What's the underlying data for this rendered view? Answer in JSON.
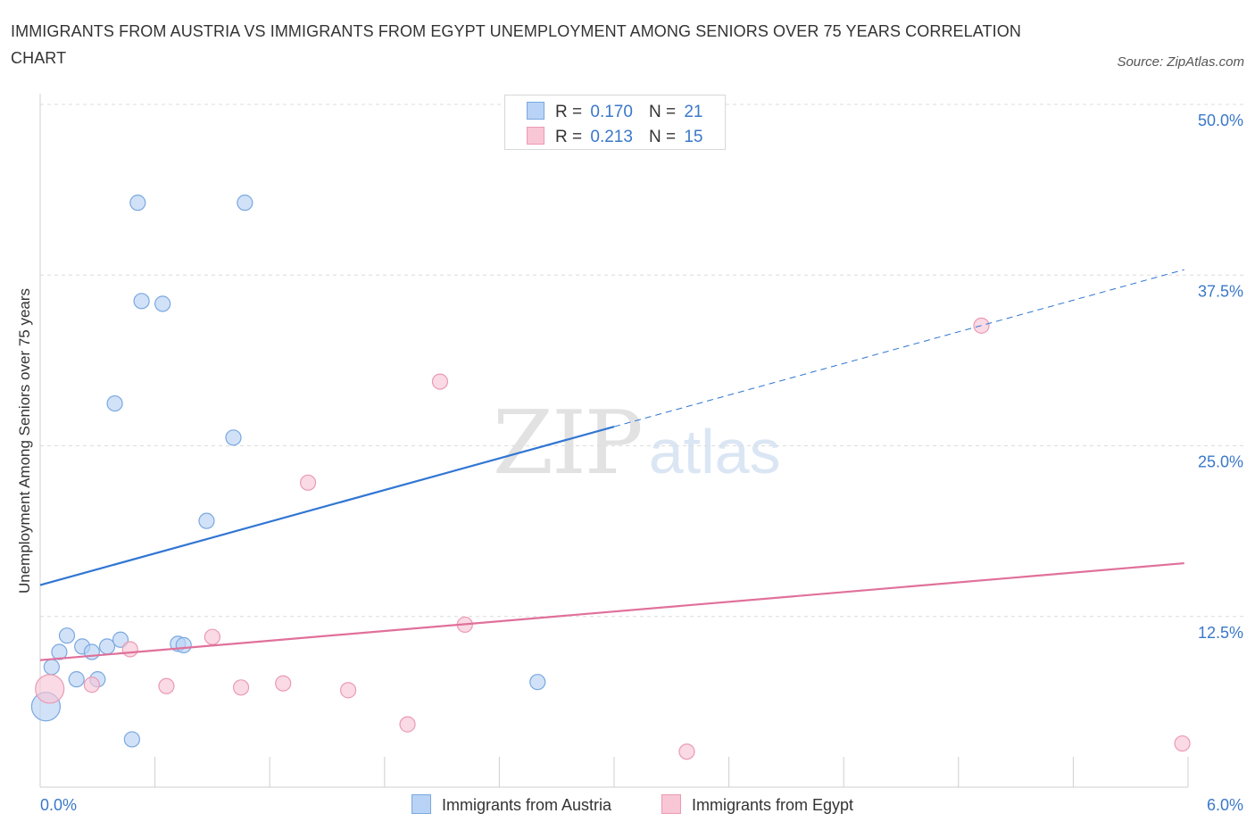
{
  "header": {
    "title": "IMMIGRANTS FROM AUSTRIA VS IMMIGRANTS FROM EGYPT UNEMPLOYMENT AMONG SENIORS OVER 75 YEARS CORRELATION CHART",
    "source": "Source: ZipAtlas.com"
  },
  "watermark": {
    "zip": "ZIP",
    "atlas": "atlas"
  },
  "legend": {
    "austria": {
      "r_label": "R =",
      "r_value": "0.170",
      "n_label": "N =",
      "n_value": "21"
    },
    "egypt": {
      "r_label": "R =",
      "r_value": "0.213",
      "n_label": "N =",
      "n_value": "15"
    }
  },
  "colors": {
    "austria_fill": "#b8d3f5",
    "austria_stroke": "#7aa8e0",
    "austria_line": "#3176d3",
    "egypt_fill": "#f8c6d5",
    "egypt_stroke": "#eb9ab4",
    "egypt_line": "#e0709a",
    "grid": "#dcdcdc",
    "axis_text": "#3a78c9"
  },
  "chart_data": {
    "type": "scatter",
    "title": "IMMIGRANTS FROM AUSTRIA VS IMMIGRANTS FROM EGYPT UNEMPLOYMENT AMONG SENIORS OVER 75 YEARS CORRELATION CHART",
    "xlabel": "",
    "ylabel": "Unemployment Among Seniors over 75 years",
    "xlim": [
      0,
      6
    ],
    "ylim": [
      0,
      50
    ],
    "x_tick_labels": [
      "0.0%",
      "6.0%"
    ],
    "y_ticks": [
      12.5,
      25.0,
      37.5,
      50.0
    ],
    "y_tick_labels": [
      "12.5%",
      "25.0%",
      "37.5%",
      "50.0%"
    ],
    "grid": true,
    "legend_position": "top-center",
    "series": [
      {
        "name": "Immigrants from Austria",
        "r": 0.17,
        "n": 21,
        "points": [
          {
            "x": 0.03,
            "y": 5.9,
            "size": "large"
          },
          {
            "x": 0.06,
            "y": 8.8,
            "size": "normal"
          },
          {
            "x": 0.1,
            "y": 9.9,
            "size": "normal"
          },
          {
            "x": 0.14,
            "y": 11.1,
            "size": "normal"
          },
          {
            "x": 0.19,
            "y": 7.9,
            "size": "normal"
          },
          {
            "x": 0.22,
            "y": 10.3,
            "size": "normal"
          },
          {
            "x": 0.27,
            "y": 9.9,
            "size": "normal"
          },
          {
            "x": 0.3,
            "y": 7.9,
            "size": "normal"
          },
          {
            "x": 0.35,
            "y": 10.3,
            "size": "normal"
          },
          {
            "x": 0.42,
            "y": 10.8,
            "size": "normal"
          },
          {
            "x": 0.39,
            "y": 28.1,
            "size": "normal"
          },
          {
            "x": 0.48,
            "y": 3.5,
            "size": "normal"
          },
          {
            "x": 0.51,
            "y": 42.8,
            "size": "normal"
          },
          {
            "x": 0.53,
            "y": 35.6,
            "size": "normal"
          },
          {
            "x": 0.64,
            "y": 35.4,
            "size": "normal"
          },
          {
            "x": 0.72,
            "y": 10.5,
            "size": "normal"
          },
          {
            "x": 0.75,
            "y": 10.4,
            "size": "normal"
          },
          {
            "x": 0.87,
            "y": 19.5,
            "size": "normal"
          },
          {
            "x": 1.01,
            "y": 25.6,
            "size": "normal"
          },
          {
            "x": 1.07,
            "y": 42.8,
            "size": "normal"
          },
          {
            "x": 2.6,
            "y": 7.7,
            "size": "normal"
          }
        ],
        "trend": {
          "x0": 0.0,
          "y0": 14.8,
          "x1": 3.0,
          "y1": 26.4,
          "x_dash_end": 5.98,
          "y_dash_end": 37.9
        }
      },
      {
        "name": "Immigrants from Egypt",
        "r": 0.213,
        "n": 15,
        "points": [
          {
            "x": 0.05,
            "y": 7.2,
            "size": "large"
          },
          {
            "x": 0.27,
            "y": 7.5,
            "size": "normal"
          },
          {
            "x": 0.47,
            "y": 10.1,
            "size": "normal"
          },
          {
            "x": 0.66,
            "y": 7.4,
            "size": "normal"
          },
          {
            "x": 0.9,
            "y": 11.0,
            "size": "normal"
          },
          {
            "x": 1.05,
            "y": 7.3,
            "size": "normal"
          },
          {
            "x": 1.27,
            "y": 7.6,
            "size": "normal"
          },
          {
            "x": 1.4,
            "y": 22.3,
            "size": "normal"
          },
          {
            "x": 1.61,
            "y": 7.1,
            "size": "normal"
          },
          {
            "x": 1.92,
            "y": 4.6,
            "size": "normal"
          },
          {
            "x": 2.09,
            "y": 29.7,
            "size": "normal"
          },
          {
            "x": 2.22,
            "y": 11.9,
            "size": "normal"
          },
          {
            "x": 3.38,
            "y": 2.6,
            "size": "normal"
          },
          {
            "x": 4.92,
            "y": 33.8,
            "size": "normal"
          },
          {
            "x": 5.97,
            "y": 3.2,
            "size": "normal"
          }
        ],
        "trend": {
          "x0": 0.0,
          "y0": 9.3,
          "x1": 5.98,
          "y1": 16.4
        }
      }
    ]
  }
}
